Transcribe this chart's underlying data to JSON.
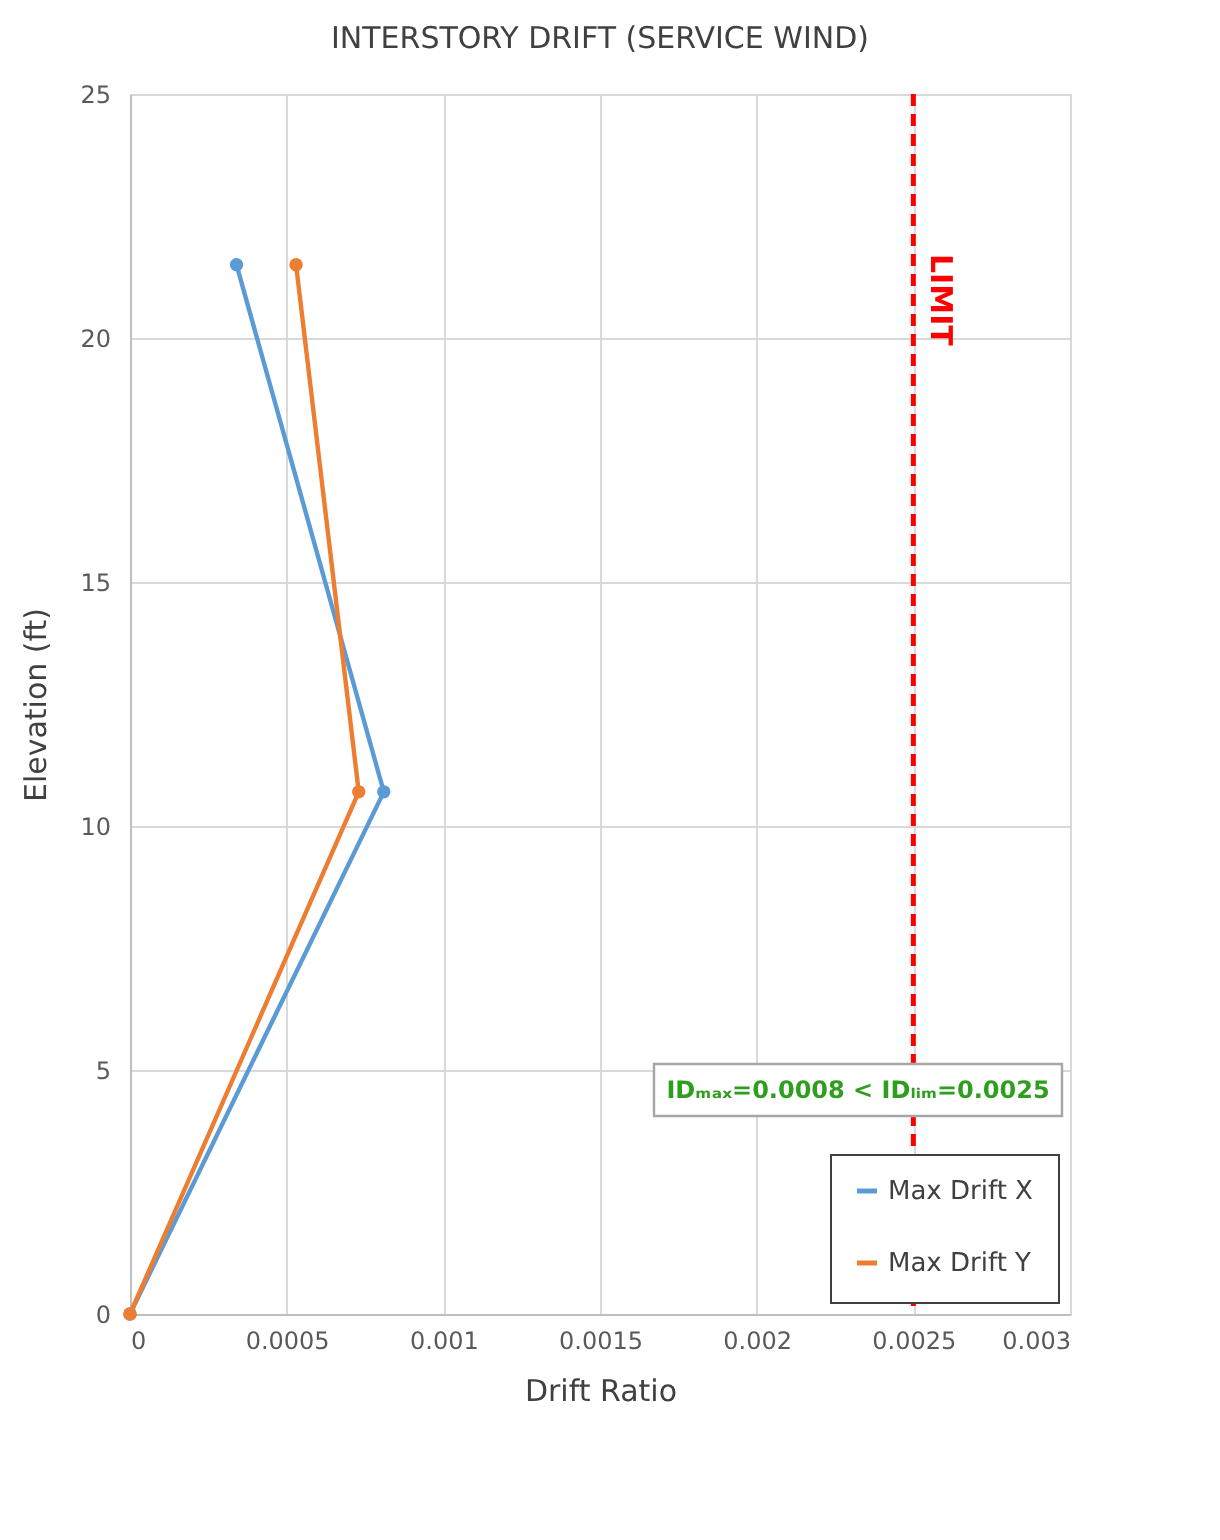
{
  "chart_data": {
    "type": "line",
    "title": "INTERSTORY DRIFT (SERVICE WIND)",
    "xlabel": "Drift Ratio",
    "ylabel": "Elevation (ft)",
    "series": [
      {
        "name": "Max Drift X",
        "color": "#5b9bd5",
        "x": [
          0,
          0.00081,
          0.00034
        ],
        "values": [
          0,
          10.7,
          21.5
        ]
      },
      {
        "name": "Max Drift Y",
        "color": "#ed7d31",
        "x": [
          0,
          0.00073,
          0.00053
        ],
        "values": [
          0,
          10.7,
          21.5
        ]
      }
    ],
    "xlim": [
      0,
      0.003
    ],
    "xticks": [
      0,
      0.0005,
      0.001,
      0.0015,
      0.002,
      0.0025,
      0.003
    ],
    "ylim": [
      0,
      25
    ],
    "yticks": [
      0,
      5,
      10,
      15,
      20,
      25
    ],
    "ref_lines": [
      {
        "axis": "x",
        "value": 0.0025,
        "label": "LIMIT",
        "color": "#ff0000",
        "line_style": "dashed"
      }
    ],
    "annotations": [
      "IDₘₐₓ=0.0008 < IDₗᵢₘ=0.0025"
    ],
    "grid": true,
    "legend": "bottom right",
    "marker": "circle",
    "line_style": "solid"
  }
}
